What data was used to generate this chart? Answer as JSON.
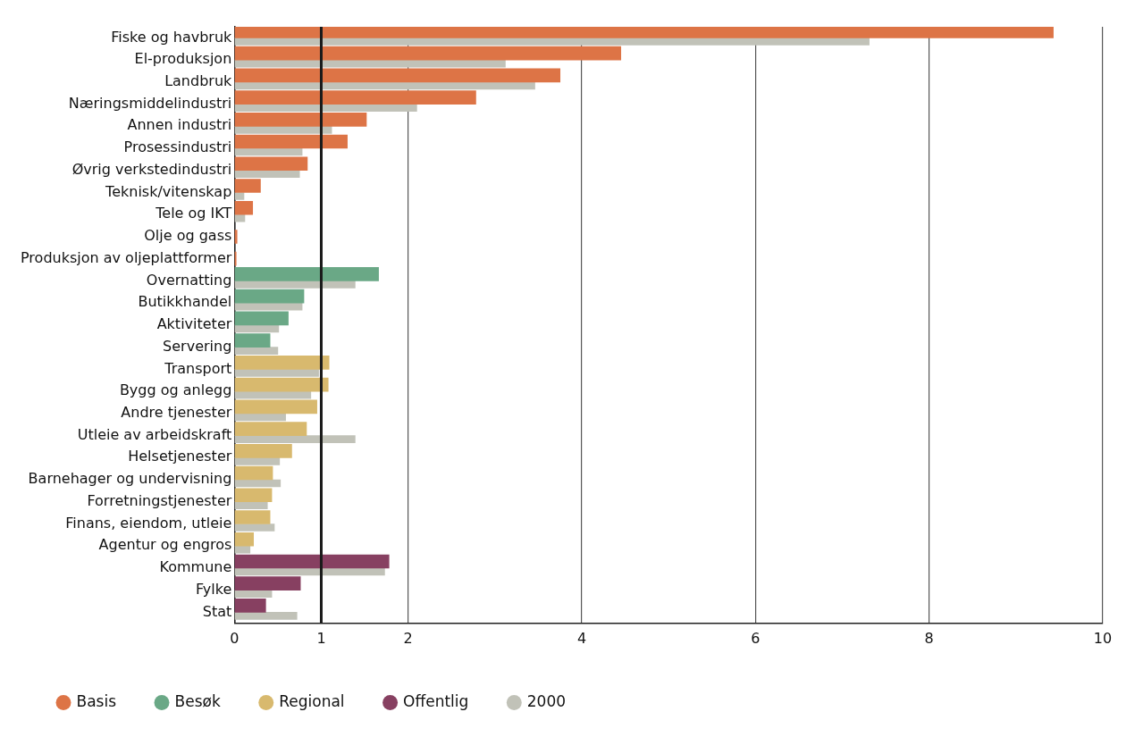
{
  "chart_data": {
    "type": "bar",
    "orientation": "horizontal",
    "categories": [
      "Fiske og havbruk",
      "El-produksjon",
      "Landbruk",
      "Næringsmiddelindustri",
      "Annen industri",
      "Prosessindustri",
      "Øvrig verkstedindustri",
      "Teknisk/vitenskap",
      "Tele og IKT",
      "Olje og gass",
      "Produksjon av oljeplattformer",
      "Overnatting",
      "Butikkhandel",
      "Aktiviteter",
      "Servering",
      "Transport",
      "Bygg og anlegg",
      "Andre tjenester",
      "Utleie av arbeidskraft",
      "Helsetjenester",
      "Barnehager og undervisning",
      "Forretningstjenester",
      "Finans, eiendom, utleie",
      "Agentur og engros",
      "Kommune",
      "Fylke",
      "Stat"
    ],
    "series": [
      {
        "name": "Basis",
        "color": "#dd7446",
        "values": [
          9.43,
          4.45,
          3.75,
          2.78,
          1.52,
          1.3,
          0.84,
          0.3,
          0.21,
          0.03,
          0.02,
          null,
          null,
          null,
          null,
          null,
          null,
          null,
          null,
          null,
          null,
          null,
          null,
          null,
          null,
          null,
          null
        ]
      },
      {
        "name": "Besøk",
        "color": "#6aa886",
        "values": [
          null,
          null,
          null,
          null,
          null,
          null,
          null,
          null,
          null,
          null,
          null,
          1.66,
          0.8,
          0.62,
          0.41,
          null,
          null,
          null,
          null,
          null,
          null,
          null,
          null,
          null,
          null,
          null,
          null
        ]
      },
      {
        "name": "Regional",
        "color": "#d8b96e",
        "values": [
          null,
          null,
          null,
          null,
          null,
          null,
          null,
          null,
          null,
          null,
          null,
          null,
          null,
          null,
          null,
          1.09,
          1.08,
          0.95,
          0.83,
          0.66,
          0.44,
          0.43,
          0.41,
          0.22,
          null,
          null,
          null
        ]
      },
      {
        "name": "Offentlig",
        "color": "#874061",
        "values": [
          null,
          null,
          null,
          null,
          null,
          null,
          null,
          null,
          null,
          null,
          null,
          null,
          null,
          null,
          null,
          null,
          null,
          null,
          null,
          null,
          null,
          null,
          null,
          null,
          1.78,
          0.76,
          0.36
        ]
      },
      {
        "name": "2000",
        "color": "#c1c2b8",
        "values": [
          7.31,
          3.12,
          3.46,
          2.1,
          1.12,
          0.78,
          0.75,
          0.11,
          0.12,
          null,
          null,
          1.39,
          0.78,
          0.51,
          0.5,
          0.97,
          0.88,
          0.59,
          1.39,
          0.52,
          0.53,
          0.38,
          0.46,
          0.18,
          1.73,
          0.43,
          0.72
        ]
      }
    ],
    "xlim": [
      0,
      10
    ],
    "xticks": [
      0,
      1,
      2,
      4,
      6,
      8,
      10
    ],
    "grid": "x",
    "legend": "bottom",
    "marker": "circle",
    "ref_lines": [
      {
        "axis": "x",
        "value": 1,
        "color": "#1a1a1a"
      }
    ]
  }
}
